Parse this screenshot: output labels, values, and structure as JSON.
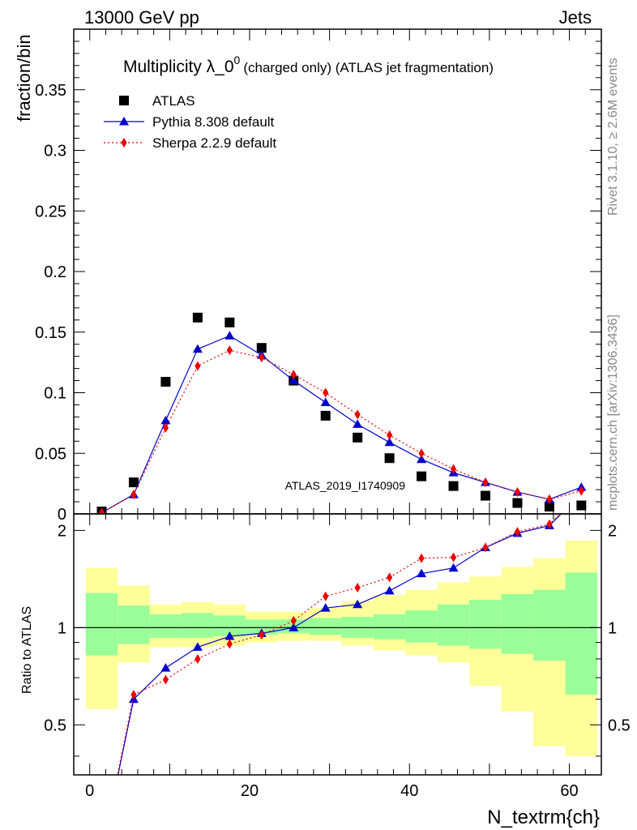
{
  "header": {
    "left": "13000 GeV pp",
    "right": "Jets"
  },
  "side_labels": {
    "rivet": "Rivet 3.1.10, ≥ 2.6M events",
    "mcplots": "mcplots.cern.ch [arXiv:1306.3436]"
  },
  "colors": {
    "atlas": "#000000",
    "pythia": "#0000cc",
    "sherpa": "#ee0000",
    "band_inner": "#99ff99",
    "band_outer": "#ffff99"
  },
  "chart_data": [
    {
      "type": "scatter",
      "title": "Multiplicity λ_0",
      "title_sup": "0",
      "subtitle": "(charged only) (ATLAS jet fragmentation)",
      "ylabel": "fraction/bin",
      "xlabel": "",
      "watermark": "ATLAS_2019_I1740909",
      "xlim": [
        -2,
        64
      ],
      "ylim": [
        0,
        0.4
      ],
      "yticks": [
        0,
        0.05,
        0.1,
        0.15,
        0.2,
        0.25,
        0.3,
        0.35
      ],
      "ytick_labels": [
        "0",
        "0.05",
        "0.1",
        "0.15",
        "0.2",
        "0.25",
        "0.3",
        "0.35"
      ],
      "grid": false,
      "legend_position": "top-left",
      "x": [
        1.5,
        5.5,
        9.5,
        13.5,
        17.5,
        21.5,
        25.5,
        29.5,
        33.5,
        37.5,
        41.5,
        45.5,
        49.5,
        53.5,
        57.5,
        61.5
      ],
      "series": [
        {
          "name": "ATLAS",
          "marker": "square",
          "values": [
            0.002,
            0.026,
            0.109,
            0.162,
            0.158,
            0.137,
            0.11,
            0.081,
            0.063,
            0.046,
            0.031,
            0.023,
            0.015,
            0.009,
            0.006,
            0.007
          ]
        },
        {
          "name": "Pythia 8.308 default",
          "marker": "triangle",
          "line": "solid",
          "values": [
            0.001,
            0.016,
            0.077,
            0.136,
            0.147,
            0.131,
            0.11,
            0.092,
            0.074,
            0.059,
            0.045,
            0.034,
            0.026,
            0.018,
            0.012,
            0.022
          ]
        },
        {
          "name": "Sherpa 2.2.9 default",
          "marker": "diamond",
          "line": "dotted",
          "values": [
            0.001,
            0.016,
            0.071,
            0.122,
            0.135,
            0.129,
            0.115,
            0.1,
            0.082,
            0.065,
            0.05,
            0.037,
            0.026,
            0.018,
            0.012,
            0.019
          ]
        }
      ]
    },
    {
      "type": "line",
      "ylabel": "Ratio to ATLAS",
      "xlabel": "N_textrm{ch}",
      "xlim": [
        -2,
        64
      ],
      "ylim": [
        0.35,
        2.25
      ],
      "xticks": [
        0,
        20,
        40,
        60
      ],
      "xtick_labels": [
        "0",
        "20",
        "40",
        "60"
      ],
      "yticks": [
        0.5,
        1,
        2
      ],
      "ytick_labels": [
        "0.5",
        "1",
        "2"
      ],
      "grid": false,
      "reference_line": 1,
      "bins": [
        [
          -0.5,
          3.5
        ],
        [
          3.5,
          7.5
        ],
        [
          7.5,
          11.5
        ],
        [
          11.5,
          15.5
        ],
        [
          15.5,
          19.5
        ],
        [
          19.5,
          23.5
        ],
        [
          23.5,
          27.5
        ],
        [
          27.5,
          31.5
        ],
        [
          31.5,
          35.5
        ],
        [
          35.5,
          39.5
        ],
        [
          39.5,
          43.5
        ],
        [
          43.5,
          47.5
        ],
        [
          47.5,
          51.5
        ],
        [
          51.5,
          55.5
        ],
        [
          55.5,
          59.5
        ],
        [
          59.5,
          63.5
        ]
      ],
      "band_inner": [
        [
          0.82,
          1.28
        ],
        [
          0.89,
          1.17
        ],
        [
          0.93,
          1.1
        ],
        [
          0.93,
          1.11
        ],
        [
          0.94,
          1.09
        ],
        [
          0.95,
          1.06
        ],
        [
          0.96,
          1.06
        ],
        [
          0.95,
          1.07
        ],
        [
          0.93,
          1.08
        ],
        [
          0.92,
          1.1
        ],
        [
          0.9,
          1.13
        ],
        [
          0.88,
          1.18
        ],
        [
          0.86,
          1.22
        ],
        [
          0.83,
          1.27
        ],
        [
          0.79,
          1.31
        ],
        [
          0.62,
          1.48
        ]
      ],
      "band_outer": [
        [
          0.56,
          1.53
        ],
        [
          0.78,
          1.35
        ],
        [
          0.87,
          1.18
        ],
        [
          0.87,
          1.2
        ],
        [
          0.88,
          1.18
        ],
        [
          0.9,
          1.12
        ],
        [
          0.91,
          1.12
        ],
        [
          0.91,
          1.15
        ],
        [
          0.88,
          1.21
        ],
        [
          0.85,
          1.26
        ],
        [
          0.82,
          1.31
        ],
        [
          0.78,
          1.38
        ],
        [
          0.66,
          1.44
        ],
        [
          0.55,
          1.54
        ],
        [
          0.43,
          1.64
        ],
        [
          0.4,
          1.86
        ]
      ],
      "series": [
        {
          "name": "Pythia 8.308 default",
          "marker": "triangle",
          "values": [
            0.2,
            0.6,
            0.75,
            0.87,
            0.94,
            0.96,
            1.0,
            1.15,
            1.18,
            1.3,
            1.47,
            1.53,
            1.77,
            1.96,
            2.07,
            2.6
          ]
        },
        {
          "name": "Sherpa 2.2.9 default",
          "marker": "diamond",
          "values": [
            0.2,
            0.62,
            0.69,
            0.8,
            0.89,
            0.95,
            1.05,
            1.25,
            1.33,
            1.43,
            1.64,
            1.65,
            1.77,
            1.98,
            2.09,
            2.6
          ]
        }
      ]
    }
  ]
}
